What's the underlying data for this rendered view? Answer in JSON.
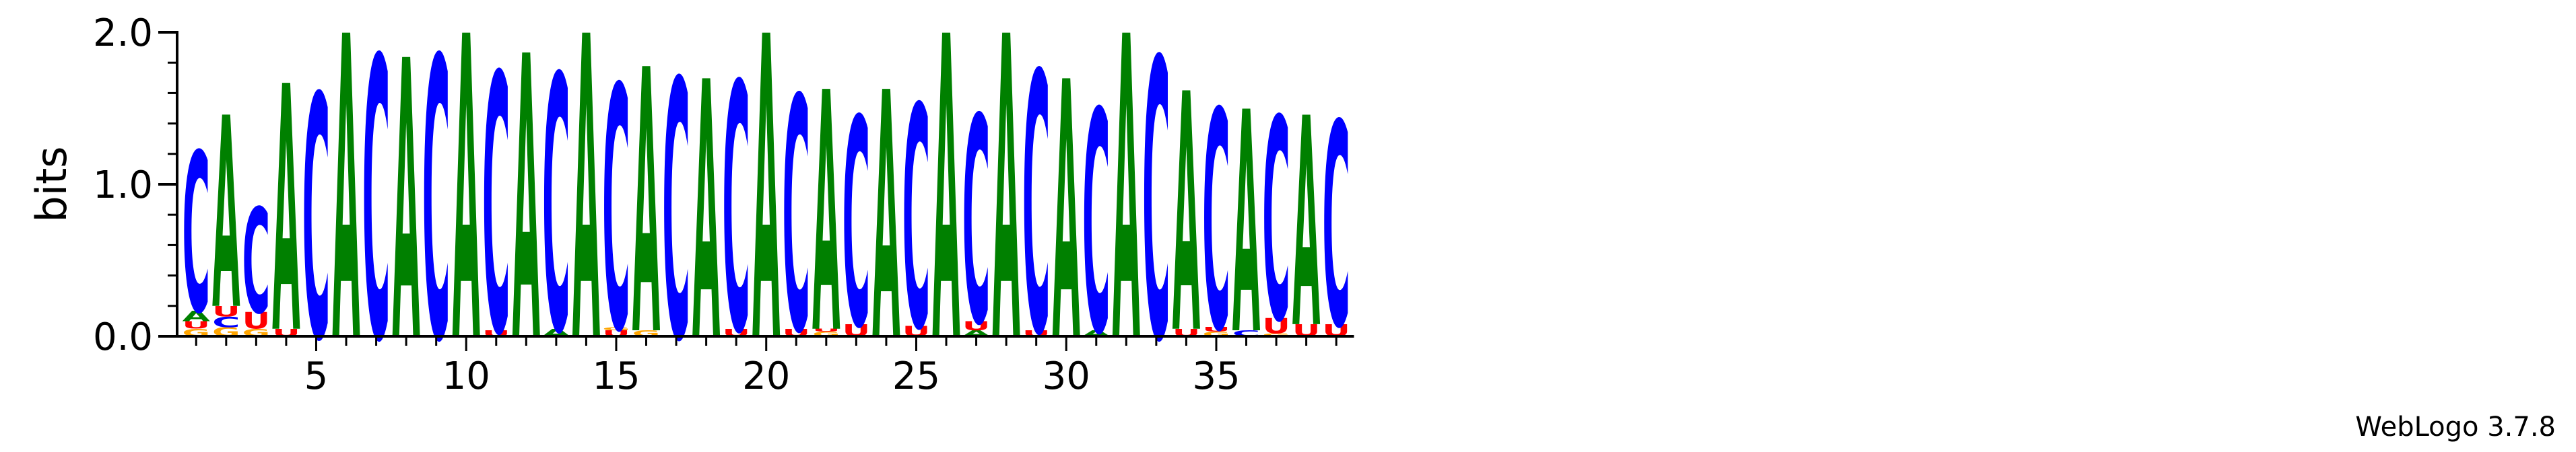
{
  "chart_data": {
    "type": "sequence-logo",
    "ylabel": "bits",
    "ylim": [
      0,
      2.0
    ],
    "yticks": [
      {
        "value": 0.0,
        "label": "0.0"
      },
      {
        "value": 1.0,
        "label": "1.0"
      },
      {
        "value": 2.0,
        "label": "2.0"
      }
    ],
    "xticks": [
      5,
      10,
      15,
      20,
      25,
      30,
      35
    ],
    "positions": 39,
    "credit": "WebLogo 3.7.8",
    "letter_colors": {
      "A": "#008000",
      "C": "#0000ff",
      "G": "#ffa500",
      "U": "#ff0000"
    },
    "columns": [
      [
        [
          "G",
          0.05
        ],
        [
          "U",
          0.05
        ],
        [
          "A",
          0.07
        ],
        [
          "C",
          1.05
        ]
      ],
      [
        [
          "G",
          0.06
        ],
        [
          "C",
          0.07
        ],
        [
          "U",
          0.07
        ],
        [
          "A",
          1.26
        ]
      ],
      [
        [
          "G",
          0.05
        ],
        [
          "U",
          0.11
        ],
        [
          "C",
          0.69
        ]
      ],
      [
        [
          "U",
          0.05
        ],
        [
          "A",
          1.62
        ]
      ],
      [
        [
          "C",
          1.6
        ]
      ],
      [
        [
          "A",
          2.0
        ]
      ],
      [
        [
          "C",
          1.85
        ]
      ],
      [
        [
          "A",
          1.84
        ]
      ],
      [
        [
          "C",
          1.85
        ]
      ],
      [
        [
          "A",
          2.0
        ]
      ],
      [
        [
          "U",
          0.04
        ],
        [
          "C",
          1.7
        ]
      ],
      [
        [
          "A",
          1.87
        ]
      ],
      [
        [
          "A",
          0.05
        ],
        [
          "C",
          1.68
        ]
      ],
      [
        [
          "A",
          2.0
        ]
      ],
      [
        [
          "U",
          0.04
        ],
        [
          "G",
          0.02
        ],
        [
          "C",
          1.6
        ]
      ],
      [
        [
          "G",
          0.04
        ],
        [
          "A",
          1.74
        ]
      ],
      [
        [
          "C",
          1.7
        ]
      ],
      [
        [
          "A",
          1.7
        ]
      ],
      [
        [
          "U",
          0.05
        ],
        [
          "C",
          1.63
        ]
      ],
      [
        [
          "A",
          2.0
        ]
      ],
      [
        [
          "U",
          0.05
        ],
        [
          "C",
          1.54
        ]
      ],
      [
        [
          "G",
          0.03
        ],
        [
          "U",
          0.02
        ],
        [
          "A",
          1.58
        ]
      ],
      [
        [
          "U",
          0.08
        ],
        [
          "C",
          1.37
        ]
      ],
      [
        [
          "A",
          1.63
        ]
      ],
      [
        [
          "U",
          0.07
        ],
        [
          "C",
          1.46
        ]
      ],
      [
        [
          "A",
          2.0
        ]
      ],
      [
        [
          "A",
          0.04
        ],
        [
          "U",
          0.06
        ],
        [
          "C",
          1.36
        ]
      ],
      [
        [
          "A",
          2.0
        ]
      ],
      [
        [
          "U",
          0.04
        ],
        [
          "C",
          1.71
        ]
      ],
      [
        [
          "A",
          1.7
        ]
      ],
      [
        [
          "A",
          0.04
        ],
        [
          "C",
          1.46
        ]
      ],
      [
        [
          "A",
          2.0
        ]
      ],
      [
        [
          "C",
          1.84
        ]
      ],
      [
        [
          "U",
          0.05
        ],
        [
          "A",
          1.57
        ]
      ],
      [
        [
          "G",
          0.03
        ],
        [
          "U",
          0.03
        ],
        [
          "C",
          1.44
        ]
      ],
      [
        [
          "C",
          0.04
        ],
        [
          "A",
          1.46
        ]
      ],
      [
        [
          "G",
          0.02
        ],
        [
          "U",
          0.1
        ],
        [
          "C",
          1.33
        ]
      ],
      [
        [
          "U",
          0.08
        ],
        [
          "A",
          1.38
        ]
      ],
      [
        [
          "U",
          0.08
        ],
        [
          "C",
          1.34
        ]
      ]
    ]
  }
}
